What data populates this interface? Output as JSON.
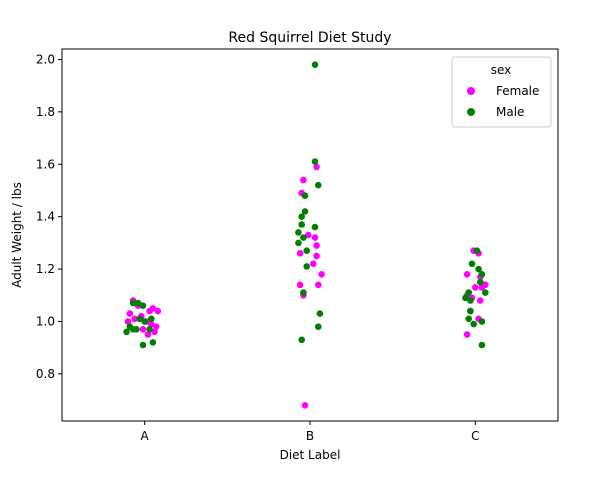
{
  "chart_data": {
    "type": "scatter",
    "title": "Red Squirrel Diet Study",
    "xlabel": "Diet Label",
    "ylabel": "Adult Weight / lbs",
    "categories": [
      "A",
      "B",
      "C"
    ],
    "ylim": [
      0.62,
      2.04
    ],
    "yticks": [
      0.8,
      1.0,
      1.2,
      1.4,
      1.6,
      1.8,
      2.0
    ],
    "ytick_labels": [
      "0.8",
      "1.0",
      "1.2",
      "1.4",
      "1.6",
      "1.8",
      "2.0"
    ],
    "grid": false,
    "legend": {
      "title": "sex",
      "position": "top-right",
      "entries": [
        "Female",
        "Male"
      ]
    },
    "colors": {
      "Female": "#ff00ff",
      "Male": "#008000"
    },
    "series": [
      {
        "name": "Female",
        "color": "#ff00ff",
        "points": [
          {
            "category": "A",
            "jitter": -0.07,
            "y": 1.08
          },
          {
            "category": "A",
            "jitter": -0.04,
            "y": 1.06
          },
          {
            "category": "A",
            "jitter": -0.09,
            "y": 1.03
          },
          {
            "category": "A",
            "jitter": -0.02,
            "y": 1.02
          },
          {
            "category": "A",
            "jitter": 0.03,
            "y": 1.04
          },
          {
            "category": "A",
            "jitter": 0.05,
            "y": 1.05
          },
          {
            "category": "A",
            "jitter": 0.08,
            "y": 1.04
          },
          {
            "category": "A",
            "jitter": -0.1,
            "y": 1.0
          },
          {
            "category": "A",
            "jitter": 0.04,
            "y": 0.99
          },
          {
            "category": "A",
            "jitter": 0.07,
            "y": 0.98
          },
          {
            "category": "A",
            "jitter": -0.01,
            "y": 0.97
          },
          {
            "category": "A",
            "jitter": 0.06,
            "y": 0.96
          },
          {
            "category": "A",
            "jitter": 0.02,
            "y": 0.95
          },
          {
            "category": "A",
            "jitter": -0.06,
            "y": 1.01
          },
          {
            "category": "A",
            "jitter": 0.01,
            "y": 1.0
          },
          {
            "category": "B",
            "jitter": -0.04,
            "y": 1.54
          },
          {
            "category": "B",
            "jitter": -0.05,
            "y": 1.49
          },
          {
            "category": "B",
            "jitter": 0.04,
            "y": 1.59
          },
          {
            "category": "B",
            "jitter": -0.01,
            "y": 1.33
          },
          {
            "category": "B",
            "jitter": 0.03,
            "y": 1.32
          },
          {
            "category": "B",
            "jitter": 0.04,
            "y": 1.29
          },
          {
            "category": "B",
            "jitter": -0.06,
            "y": 1.26
          },
          {
            "category": "B",
            "jitter": 0.04,
            "y": 1.25
          },
          {
            "category": "B",
            "jitter": 0.02,
            "y": 1.22
          },
          {
            "category": "B",
            "jitter": 0.07,
            "y": 1.18
          },
          {
            "category": "B",
            "jitter": 0.05,
            "y": 1.14
          },
          {
            "category": "B",
            "jitter": -0.06,
            "y": 1.14
          },
          {
            "category": "B",
            "jitter": -0.04,
            "y": 1.1
          },
          {
            "category": "B",
            "jitter": -0.03,
            "y": 0.68
          },
          {
            "category": "C",
            "jitter": -0.01,
            "y": 1.27
          },
          {
            "category": "C",
            "jitter": 0.02,
            "y": 1.26
          },
          {
            "category": "C",
            "jitter": -0.05,
            "y": 1.18
          },
          {
            "category": "C",
            "jitter": 0.03,
            "y": 1.17
          },
          {
            "category": "C",
            "jitter": 0.06,
            "y": 1.14
          },
          {
            "category": "C",
            "jitter": 0.04,
            "y": 1.13
          },
          {
            "category": "C",
            "jitter": 0.0,
            "y": 1.13
          },
          {
            "category": "C",
            "jitter": -0.05,
            "y": 1.1
          },
          {
            "category": "C",
            "jitter": -0.02,
            "y": 1.09
          },
          {
            "category": "C",
            "jitter": 0.03,
            "y": 1.08
          },
          {
            "category": "C",
            "jitter": -0.03,
            "y": 1.04
          },
          {
            "category": "C",
            "jitter": 0.02,
            "y": 1.01
          },
          {
            "category": "C",
            "jitter": -0.05,
            "y": 0.95
          }
        ]
      },
      {
        "name": "Male",
        "color": "#008000",
        "points": [
          {
            "category": "A",
            "jitter": -0.04,
            "y": 1.07
          },
          {
            "category": "A",
            "jitter": -0.01,
            "y": 1.06
          },
          {
            "category": "A",
            "jitter": -0.07,
            "y": 1.07
          },
          {
            "category": "A",
            "jitter": -0.03,
            "y": 1.01
          },
          {
            "category": "A",
            "jitter": 0.04,
            "y": 1.01
          },
          {
            "category": "A",
            "jitter": 0.0,
            "y": 1.0
          },
          {
            "category": "A",
            "jitter": -0.09,
            "y": 0.98
          },
          {
            "category": "A",
            "jitter": -0.05,
            "y": 0.97
          },
          {
            "category": "A",
            "jitter": 0.03,
            "y": 0.97
          },
          {
            "category": "A",
            "jitter": -0.07,
            "y": 0.97
          },
          {
            "category": "A",
            "jitter": -0.11,
            "y": 0.96
          },
          {
            "category": "A",
            "jitter": -0.01,
            "y": 0.91
          },
          {
            "category": "A",
            "jitter": 0.05,
            "y": 0.92
          },
          {
            "category": "B",
            "jitter": 0.03,
            "y": 1.98
          },
          {
            "category": "B",
            "jitter": 0.03,
            "y": 1.61
          },
          {
            "category": "B",
            "jitter": 0.05,
            "y": 1.52
          },
          {
            "category": "B",
            "jitter": -0.03,
            "y": 1.48
          },
          {
            "category": "B",
            "jitter": -0.03,
            "y": 1.42
          },
          {
            "category": "B",
            "jitter": -0.05,
            "y": 1.4
          },
          {
            "category": "B",
            "jitter": -0.05,
            "y": 1.37
          },
          {
            "category": "B",
            "jitter": 0.03,
            "y": 1.36
          },
          {
            "category": "B",
            "jitter": -0.07,
            "y": 1.34
          },
          {
            "category": "B",
            "jitter": -0.04,
            "y": 1.32
          },
          {
            "category": "B",
            "jitter": -0.07,
            "y": 1.3
          },
          {
            "category": "B",
            "jitter": -0.02,
            "y": 1.27
          },
          {
            "category": "B",
            "jitter": -0.02,
            "y": 1.21
          },
          {
            "category": "B",
            "jitter": -0.04,
            "y": 1.11
          },
          {
            "category": "B",
            "jitter": 0.06,
            "y": 1.03
          },
          {
            "category": "B",
            "jitter": 0.05,
            "y": 0.98
          },
          {
            "category": "B",
            "jitter": -0.05,
            "y": 0.93
          },
          {
            "category": "C",
            "jitter": 0.01,
            "y": 1.27
          },
          {
            "category": "C",
            "jitter": -0.02,
            "y": 1.22
          },
          {
            "category": "C",
            "jitter": 0.02,
            "y": 1.2
          },
          {
            "category": "C",
            "jitter": 0.04,
            "y": 1.18
          },
          {
            "category": "C",
            "jitter": 0.03,
            "y": 1.15
          },
          {
            "category": "C",
            "jitter": -0.04,
            "y": 1.11
          },
          {
            "category": "C",
            "jitter": 0.06,
            "y": 1.11
          },
          {
            "category": "C",
            "jitter": -0.06,
            "y": 1.09
          },
          {
            "category": "C",
            "jitter": -0.03,
            "y": 1.08
          },
          {
            "category": "C",
            "jitter": -0.03,
            "y": 1.04
          },
          {
            "category": "C",
            "jitter": -0.04,
            "y": 1.01
          },
          {
            "category": "C",
            "jitter": 0.04,
            "y": 1.0
          },
          {
            "category": "C",
            "jitter": -0.01,
            "y": 0.99
          },
          {
            "category": "C",
            "jitter": 0.04,
            "y": 0.91
          }
        ]
      }
    ]
  }
}
